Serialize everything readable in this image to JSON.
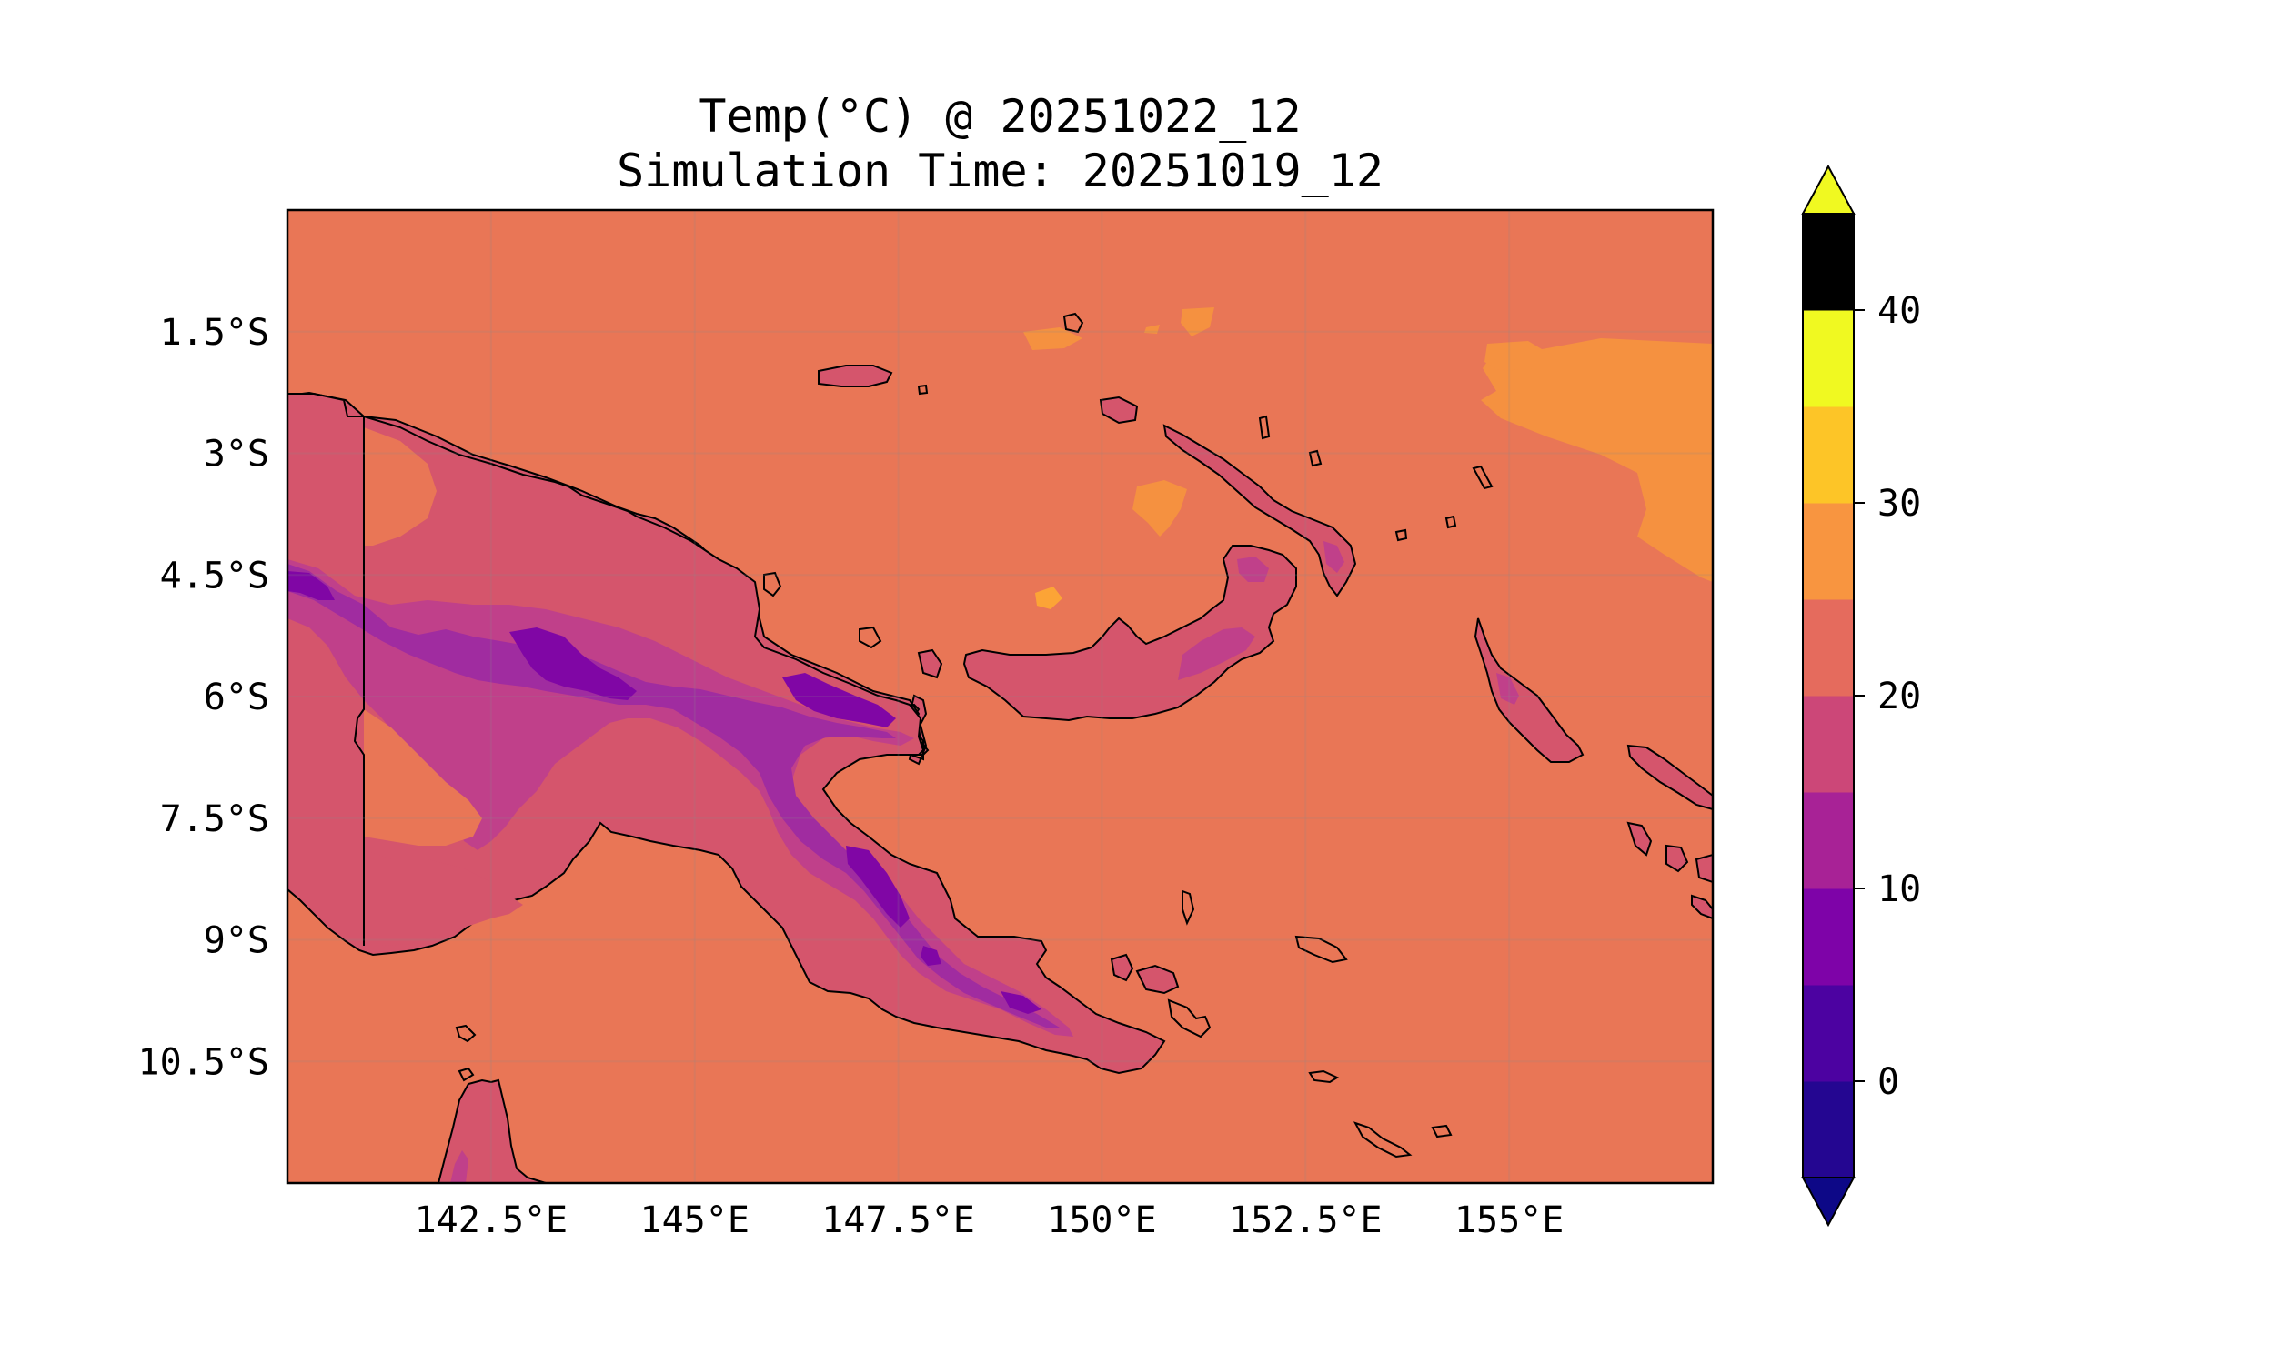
{
  "title": {
    "line1": "Temp(°C) @ 20251022_12",
    "line2": "Simulation Time: 20251019_12"
  },
  "map": {
    "region": "Papua New Guinea",
    "projection": "PlateCarree",
    "lon_range": [
      140,
      157.5
    ],
    "lat_range": [
      -12,
      0
    ],
    "gridlines": true,
    "x_ticks": [
      {
        "value": 142.5,
        "label": "142.5°E"
      },
      {
        "value": 145,
        "label": "145°E"
      },
      {
        "value": 147.5,
        "label": "147.5°E"
      },
      {
        "value": 150,
        "label": "150°E"
      },
      {
        "value": 152.5,
        "label": "152.5°E"
      },
      {
        "value": 155,
        "label": "155°E"
      }
    ],
    "y_ticks": [
      {
        "value": -1.5,
        "label": "1.5°S"
      },
      {
        "value": -3,
        "label": "3°S"
      },
      {
        "value": -4.5,
        "label": "4.5°S"
      },
      {
        "value": -6,
        "label": "6°S"
      },
      {
        "value": -7.5,
        "label": "7.5°S"
      },
      {
        "value": -9,
        "label": "9°S"
      },
      {
        "value": -10.5,
        "label": "10.5°S"
      }
    ],
    "background_level_color": "#e97656",
    "field_colors": {
      "warm_ocean": "#f59140",
      "hot_patch": "#fca436",
      "lowland_land": "#d5556c",
      "highland_mid": "#c0408a",
      "highland_high": "#a02ca0",
      "peak": "#8006a5"
    }
  },
  "colorbar": {
    "colormap": "plasma",
    "extend": "both",
    "vmin": -5,
    "vmax": 45,
    "bounds": [
      -5,
      0,
      5,
      10,
      15,
      20,
      25,
      30,
      35,
      40,
      45
    ],
    "colors": [
      "#240691",
      "#4c02a1",
      "#7e03a8",
      "#a82296",
      "#cc4778",
      "#e56b5d",
      "#f89540",
      "#fdc527",
      "#f0f921"
    ],
    "under_color": "#0d0887",
    "over_color": "#f0f921",
    "ticks": [
      {
        "value": 0,
        "label": "0"
      },
      {
        "value": 10,
        "label": "10"
      },
      {
        "value": 20,
        "label": "20"
      },
      {
        "value": 30,
        "label": "30"
      },
      {
        "value": 40,
        "label": "40"
      }
    ]
  }
}
